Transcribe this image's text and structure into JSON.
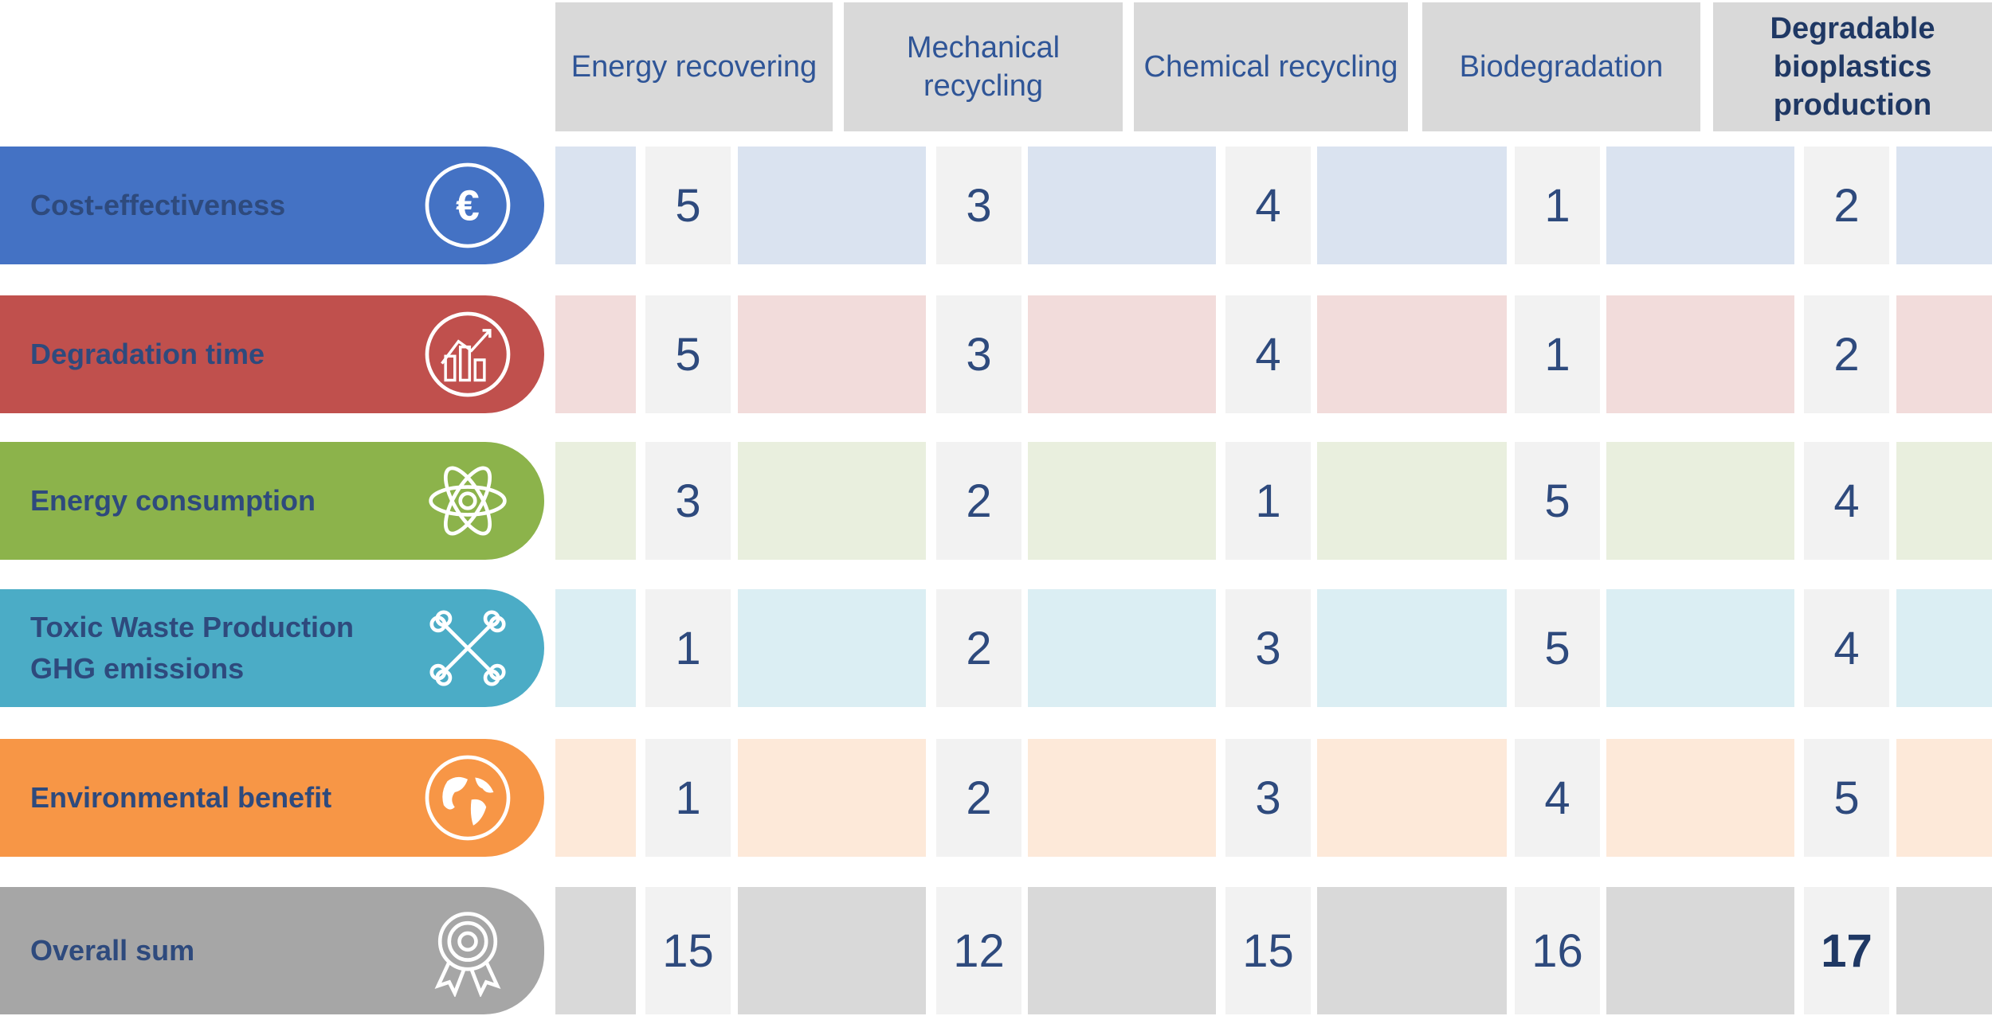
{
  "colors": {
    "header_bg": "#d9d9d9",
    "score_bg": "#f2f2f2",
    "text_dark": "#2e4a7d"
  },
  "columns": [
    {
      "label": "Energy recovering",
      "bold": false
    },
    {
      "label": "Mechanical recycling",
      "bold": false
    },
    {
      "label": "Chemical recycling",
      "bold": false
    },
    {
      "label": "Biodegradation",
      "bold": false
    },
    {
      "label": "Degradable bioplastics production",
      "bold": true
    }
  ],
  "rows": [
    {
      "label": "Cost-effectiveness",
      "icon": "euro-icon",
      "color": "#4472c4",
      "tint": "#dae3f0",
      "values": [
        "5",
        "3",
        "4",
        "1",
        "2"
      ]
    },
    {
      "label": "Degradation time",
      "icon": "decline-chart-icon",
      "color": "#c0504d",
      "tint": "#f2dcdb",
      "values": [
        "5",
        "3",
        "4",
        "1",
        "2"
      ]
    },
    {
      "label": "Energy consumption",
      "icon": "atom-icon",
      "color": "#8cb34b",
      "tint": "#e9efde",
      "values": [
        "3",
        "2",
        "1",
        "5",
        "4"
      ]
    },
    {
      "label": "Toxic Waste Production GHG emissions",
      "icon": "crossbones-icon",
      "color": "#4bacc6",
      "tint": "#dbeef3",
      "values": [
        "1",
        "2",
        "3",
        "5",
        "4"
      ]
    },
    {
      "label": "Environmental benefit",
      "icon": "globe-icon",
      "color": "#f79646",
      "tint": "#fde9d9",
      "values": [
        "1",
        "2",
        "3",
        "4",
        "5"
      ]
    },
    {
      "label": "Overall sum",
      "icon": "award-ribbon-icon",
      "color": "#a6a6a6",
      "tint": "#d9d9d9",
      "values": [
        "15",
        "12",
        "15",
        "16",
        "17"
      ],
      "best_index": 4
    }
  ]
}
